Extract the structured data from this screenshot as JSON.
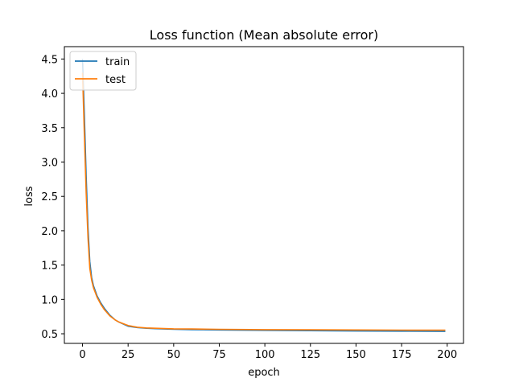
{
  "chart_data": {
    "type": "line",
    "title": "Loss function (Mean absolute error)",
    "xlabel": "epoch",
    "ylabel": "loss",
    "xlim": [
      -9.95,
      208.95
    ],
    "ylim": [
      0.36,
      4.68
    ],
    "xticks": [
      0,
      25,
      50,
      75,
      100,
      125,
      150,
      175,
      200
    ],
    "yticks": [
      0.5,
      1.0,
      1.5,
      2.0,
      2.5,
      3.0,
      3.5,
      4.0,
      4.5
    ],
    "xtick_labels": [
      "0",
      "25",
      "50",
      "75",
      "100",
      "125",
      "150",
      "175",
      "200"
    ],
    "ytick_labels": [
      "0.5",
      "1.0",
      "1.5",
      "2.0",
      "2.5",
      "3.0",
      "3.5",
      "4.0",
      "4.5"
    ],
    "grid": false,
    "legend": "upper-left",
    "series": [
      {
        "name": "train",
        "color": "#1f77b4",
        "x": [
          0,
          1,
          2,
          3,
          4,
          5,
          6,
          8,
          10,
          12,
          15,
          18,
          20,
          25,
          30,
          35,
          40,
          50,
          60,
          75,
          100,
          125,
          150,
          175,
          199
        ],
        "y": [
          4.5,
          3.7,
          2.8,
          2.05,
          1.55,
          1.32,
          1.2,
          1.05,
          0.95,
          0.87,
          0.77,
          0.7,
          0.67,
          0.61,
          0.59,
          0.58,
          0.575,
          0.565,
          0.56,
          0.555,
          0.55,
          0.545,
          0.54,
          0.538,
          0.535
        ]
      },
      {
        "name": "test",
        "color": "#ff7f0e",
        "x": [
          0,
          1,
          2,
          3,
          4,
          5,
          6,
          8,
          10,
          12,
          15,
          18,
          20,
          25,
          30,
          35,
          40,
          50,
          60,
          75,
          100,
          125,
          150,
          175,
          199
        ],
        "y": [
          4.3,
          3.4,
          2.55,
          1.9,
          1.45,
          1.28,
          1.17,
          1.03,
          0.93,
          0.85,
          0.76,
          0.7,
          0.67,
          0.62,
          0.595,
          0.585,
          0.58,
          0.572,
          0.57,
          0.565,
          0.56,
          0.558,
          0.555,
          0.553,
          0.552
        ]
      }
    ]
  }
}
